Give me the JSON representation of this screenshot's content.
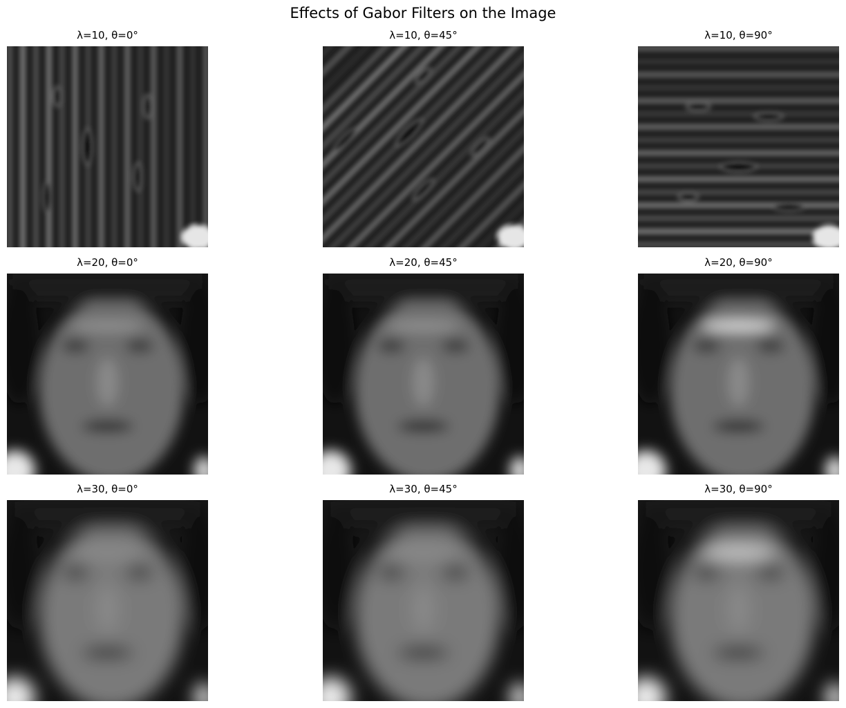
{
  "figure": {
    "title": "Effects of Gabor Filters on the Image",
    "image_description_note_free": true
  },
  "panels": [
    {
      "lambda": 10,
      "theta": 0,
      "title": "λ=10, θ=0°"
    },
    {
      "lambda": 10,
      "theta": 45,
      "title": "λ=10, θ=45°"
    },
    {
      "lambda": 10,
      "theta": 90,
      "title": "λ=10, θ=90°"
    },
    {
      "lambda": 20,
      "theta": 0,
      "title": "λ=20, θ=0°"
    },
    {
      "lambda": 20,
      "theta": 45,
      "title": "λ=20, θ=45°"
    },
    {
      "lambda": 20,
      "theta": 90,
      "title": "λ=20, θ=90°"
    },
    {
      "lambda": 30,
      "theta": 0,
      "title": "λ=30, θ=0°"
    },
    {
      "lambda": 30,
      "theta": 45,
      "title": "λ=30, θ=45°"
    },
    {
      "lambda": 30,
      "theta": 90,
      "title": "λ=30, θ=90°"
    }
  ],
  "colors": {
    "background": "#ffffff",
    "dark": "#0a0a0a",
    "mid": "#5a5a5a",
    "light": "#d8d8d8"
  }
}
